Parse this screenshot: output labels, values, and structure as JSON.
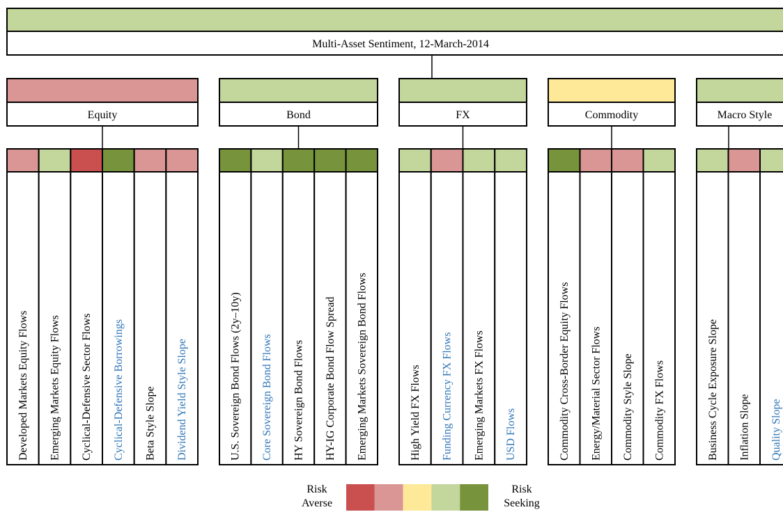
{
  "title": {
    "label": "Multi-Asset Sentiment, 12-March-2014",
    "color": "#c3d69b"
  },
  "groups": [
    {
      "label": "Equity",
      "color": "#d99694",
      "items": [
        {
          "label": "Developed Markets Equity Flows",
          "color": "#d99694",
          "highlight": false
        },
        {
          "label": "Emerging Markets Equity Flows",
          "color": "#c3d69b",
          "highlight": false
        },
        {
          "label": "Cyclical-Defensive Sector Flows",
          "color": "#c9504f",
          "highlight": false
        },
        {
          "label": "Cyclical-Defensive Borrowings",
          "color": "#77933c",
          "highlight": true
        },
        {
          "label": "Beta Style Slope",
          "color": "#d99694",
          "highlight": false
        },
        {
          "label": "Dividend Yield Style Slope",
          "color": "#d99694",
          "highlight": true
        }
      ]
    },
    {
      "label": "Bond",
      "color": "#c3d69b",
      "items": [
        {
          "label": "U.S. Sovereign Bond Flows (2y–10y)",
          "color": "#77933c",
          "highlight": false
        },
        {
          "label": "Core Sovereign Bond Flows",
          "color": "#c3d69b",
          "highlight": true
        },
        {
          "label": "HY Sovereign Bond Flows",
          "color": "#77933c",
          "highlight": false
        },
        {
          "label": "HY-IG Corporate Bond Flow Spread",
          "color": "#77933c",
          "highlight": false
        },
        {
          "label": "Emerging Markets Sovereign Bond Flows",
          "color": "#77933c",
          "highlight": false
        }
      ]
    },
    {
      "label": "FX",
      "color": "#c3d69b",
      "items": [
        {
          "label": "High Yield FX Flows",
          "color": "#c3d69b",
          "highlight": false
        },
        {
          "label": "Funding Currency FX Flows",
          "color": "#d99694",
          "highlight": true
        },
        {
          "label": "Emerging Markets FX Flows",
          "color": "#c3d69b",
          "highlight": false
        },
        {
          "label": "USD Flows",
          "color": "#c3d69b",
          "highlight": true
        }
      ]
    },
    {
      "label": "Commodity",
      "color": "#fde998",
      "items": [
        {
          "label": "Commodity Cross-Border Equity Flows",
          "color": "#77933c",
          "highlight": false
        },
        {
          "label": "Energy/Material Sector Flows",
          "color": "#d99694",
          "highlight": false
        },
        {
          "label": "Commodity Style Slope",
          "color": "#d99694",
          "highlight": false
        },
        {
          "label": "Commodity FX Flows",
          "color": "#c3d69b",
          "highlight": false
        }
      ]
    },
    {
      "label": "Macro Style",
      "color": "#c3d69b",
      "items": [
        {
          "label": "Business Cycle Exposure Slope",
          "color": "#c3d69b",
          "highlight": false
        },
        {
          "label": "Inflation Slope",
          "color": "#d99694",
          "highlight": false
        },
        {
          "label": "Quality Slope",
          "color": "#c3d69b",
          "highlight": true
        }
      ]
    }
  ],
  "legend": {
    "left": "Risk Averse",
    "right": "Risk Seeking",
    "colors": [
      "#c9504f",
      "#d99694",
      "#fde998",
      "#c3d69b",
      "#77933c"
    ]
  }
}
